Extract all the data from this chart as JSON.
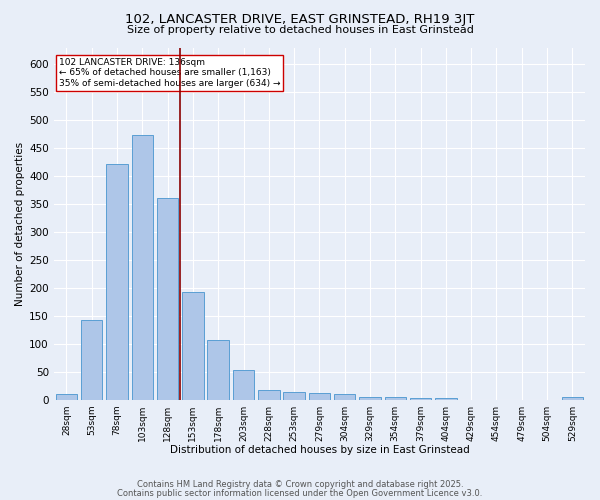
{
  "title1": "102, LANCASTER DRIVE, EAST GRINSTEAD, RH19 3JT",
  "title2": "Size of property relative to detached houses in East Grinstead",
  "xlabel": "Distribution of detached houses by size in East Grinstead",
  "ylabel": "Number of detached properties",
  "bar_labels": [
    "28sqm",
    "53sqm",
    "78sqm",
    "103sqm",
    "128sqm",
    "153sqm",
    "178sqm",
    "203sqm",
    "228sqm",
    "253sqm",
    "279sqm",
    "304sqm",
    "329sqm",
    "354sqm",
    "379sqm",
    "404sqm",
    "429sqm",
    "454sqm",
    "479sqm",
    "504sqm",
    "529sqm"
  ],
  "bar_values": [
    10,
    143,
    422,
    473,
    360,
    192,
    107,
    53,
    18,
    14,
    11,
    10,
    5,
    5,
    3,
    3,
    0,
    0,
    0,
    0,
    4
  ],
  "bar_color": "#aec6e8",
  "bar_edge_color": "#5a9fd4",
  "bg_color": "#e8eef8",
  "grid_color": "#ffffff",
  "vline_x": 4.5,
  "vline_color": "#8b0000",
  "annotation_text": "102 LANCASTER DRIVE: 136sqm\n← 65% of detached houses are smaller (1,163)\n35% of semi-detached houses are larger (634) →",
  "annotation_box_color": "#ffffff",
  "annotation_box_edge": "#cc0000",
  "ylim": [
    0,
    630
  ],
  "yticks": [
    0,
    50,
    100,
    150,
    200,
    250,
    300,
    350,
    400,
    450,
    500,
    550,
    600
  ],
  "footer1": "Contains HM Land Registry data © Crown copyright and database right 2025.",
  "footer2": "Contains public sector information licensed under the Open Government Licence v3.0."
}
